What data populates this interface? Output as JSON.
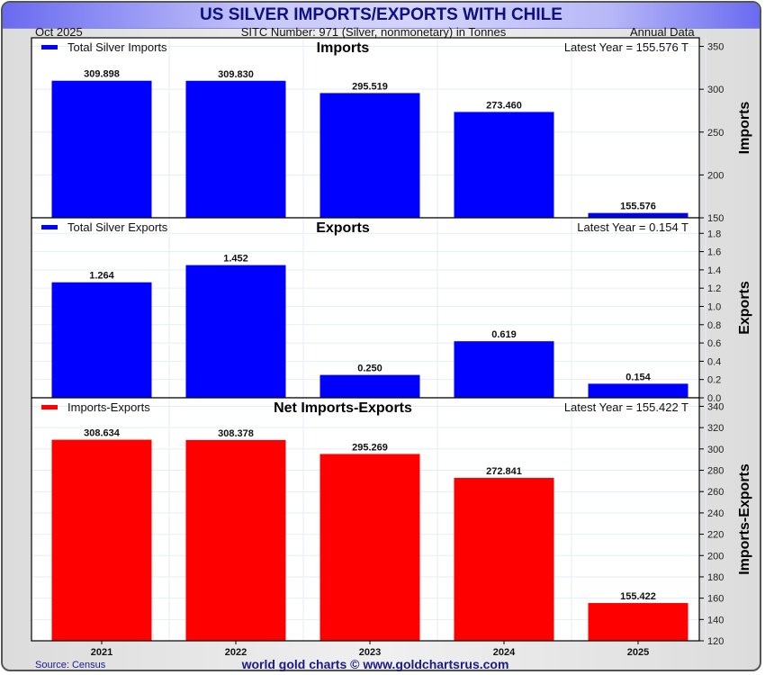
{
  "header": {
    "title": "US SILVER IMPORTS/EXPORTS WITH CHILE",
    "date": "Oct  2025",
    "sitc": "SITC Number: 971 (Silver, nonmonetary) in Tonnes",
    "frequency": "Annual Data"
  },
  "footer": {
    "source": "Source: Census",
    "credit": "world gold charts © www.goldchartsrus.com"
  },
  "colors": {
    "imports": "#0000ff",
    "exports": "#0000ff",
    "net": "#ff0000",
    "grid": "#e4eef8"
  },
  "chart_data": [
    {
      "type": "bar",
      "title": "Imports",
      "legend": "Total Silver Imports",
      "latest": "Latest Year = 155.576 T",
      "ylabel": "Imports",
      "categories": [
        "2021",
        "2022",
        "2023",
        "2024",
        "2025"
      ],
      "values": [
        309.898,
        309.83,
        295.519,
        273.46,
        155.576
      ],
      "labels": [
        "309.898",
        "309.830",
        "295.519",
        "273.460",
        "155.576"
      ],
      "ylim": [
        150,
        360
      ],
      "yticks": [
        150,
        200,
        250,
        300,
        350
      ],
      "ytick_labels": [
        "150",
        "200",
        "250",
        "300",
        "350"
      ],
      "color": "#0000ff",
      "grid": true,
      "legend_position": "top-left"
    },
    {
      "type": "bar",
      "title": "Exports",
      "legend": "Total Silver Exports",
      "latest": "Latest Year = 0.154 T",
      "ylabel": "Exports",
      "categories": [
        "2021",
        "2022",
        "2023",
        "2024",
        "2025"
      ],
      "values": [
        1.264,
        1.452,
        0.25,
        0.619,
        0.154
      ],
      "labels": [
        "1.264",
        "1.452",
        "0.250",
        "0.619",
        "0.154"
      ],
      "ylim": [
        0,
        1.97
      ],
      "yticks": [
        0,
        0.2,
        0.4,
        0.6,
        0.8,
        1.0,
        1.2,
        1.4,
        1.6,
        1.8
      ],
      "ytick_labels": [
        "0.0",
        "0.2",
        "0.4",
        "0.6",
        "0.8",
        "1.0",
        "1.2",
        "1.4",
        "1.6",
        "1.8"
      ],
      "color": "#0000ff",
      "grid": true,
      "legend_position": "top-left"
    },
    {
      "type": "bar",
      "title": "Net Imports-Exports",
      "legend": "Imports-Exports",
      "latest": "Latest Year = 155.422 T",
      "ylabel": "Imports-Exports",
      "categories": [
        "2021",
        "2022",
        "2023",
        "2024",
        "2025"
      ],
      "values": [
        308.634,
        308.378,
        295.269,
        272.841,
        155.422
      ],
      "labels": [
        "308.634",
        "308.378",
        "295.269",
        "272.841",
        "155.422"
      ],
      "ylim": [
        120,
        348
      ],
      "yticks": [
        120,
        140,
        160,
        180,
        200,
        220,
        240,
        260,
        280,
        300,
        320,
        340
      ],
      "ytick_labels": [
        "120",
        "140",
        "160",
        "180",
        "200",
        "220",
        "240",
        "260",
        "280",
        "300",
        "320",
        "340"
      ],
      "color": "#ff0000",
      "grid": true,
      "legend_position": "top-left"
    }
  ]
}
